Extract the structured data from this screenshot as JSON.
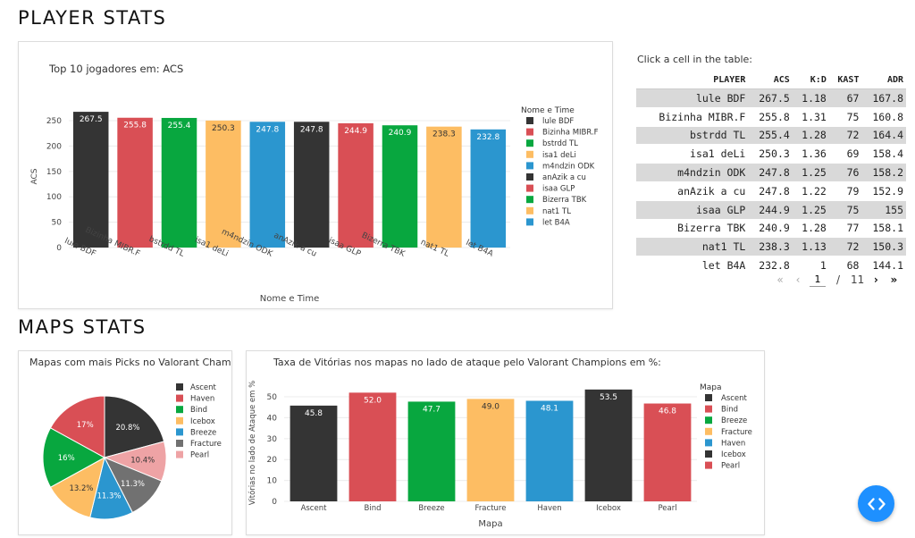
{
  "headings": {
    "player_stats": "PLAYER STATS",
    "maps_stats": "MAPS STATS"
  },
  "colors": [
    "#343434",
    "#d94f55",
    "#08a73f",
    "#fdbd63",
    "#2b96cf",
    "#343434",
    "#d94f55",
    "#08a73f",
    "#fdbd63",
    "#2b96cf"
  ],
  "table": {
    "caption": "Click a cell in the table:",
    "columns": [
      "PLAYER",
      "ACS",
      "K:D",
      "KAST",
      "ADR"
    ],
    "rows": [
      [
        "lule BDF",
        "267.5",
        "1.18",
        "67",
        "167.8"
      ],
      [
        "Bizinha MIBR.F",
        "255.8",
        "1.31",
        "75",
        "160.8"
      ],
      [
        "bstrdd TL",
        "255.4",
        "1.28",
        "72",
        "164.4"
      ],
      [
        "isa1 deLi",
        "250.3",
        "1.36",
        "69",
        "158.4"
      ],
      [
        "m4ndzin ODK",
        "247.8",
        "1.25",
        "76",
        "158.2"
      ],
      [
        "anAzik a cu",
        "247.8",
        "1.22",
        "79",
        "152.9"
      ],
      [
        "isaa GLP",
        "244.9",
        "1.25",
        "75",
        "155"
      ],
      [
        "Bizerra TBK",
        "240.9",
        "1.28",
        "77",
        "158.1"
      ],
      [
        "nat1 TL",
        "238.3",
        "1.13",
        "72",
        "150.3"
      ],
      [
        "let B4A",
        "232.8",
        "1",
        "68",
        "144.1"
      ]
    ],
    "pager": {
      "current": "1",
      "separator": "/",
      "total": "11",
      "first": "«",
      "prev": "‹",
      "next": "›",
      "last": "»"
    }
  },
  "fab": {
    "icon": "code-icon",
    "color": "#1e90ff"
  },
  "chart_data": [
    {
      "type": "bar",
      "title": "Top 10 jogadores em: ACS",
      "xlabel": "Nome e Time",
      "ylabel": "ACS",
      "ylim": [
        0,
        280
      ],
      "yticks": [
        0,
        50,
        100,
        150,
        200,
        250
      ],
      "legend_title": "Nome e Time",
      "legend_position": "right",
      "categories": [
        "lule  BDF",
        "Bizinha  MIBR.F",
        "bstrdd  TL",
        "isa1  deLi",
        "m4ndzin  ODK",
        "anAzik  a cu",
        "isaa  GLP",
        "Bizerra  TBK",
        "nat1  TL",
        "let  B4A"
      ],
      "values": [
        267.5,
        255.8,
        255.4,
        250.3,
        247.8,
        247.8,
        244.9,
        240.9,
        238.3,
        232.8
      ],
      "labels": [
        "267.5",
        "255.8",
        "255.4",
        "250.3",
        "247.8",
        "247.8",
        "244.9",
        "240.9",
        "238.3",
        "232.8"
      ],
      "colors": [
        "#343434",
        "#d94f55",
        "#08a73f",
        "#fdbd63",
        "#2b96cf",
        "#343434",
        "#d94f55",
        "#08a73f",
        "#fdbd63",
        "#2b96cf"
      ]
    },
    {
      "type": "pie",
      "title": "Mapas com mais Picks no Valorant Champions",
      "legend_position": "right",
      "categories": [
        "Ascent",
        "Haven",
        "Bind",
        "Icebox",
        "Breeze",
        "Fracture",
        "Pearl"
      ],
      "values": [
        20.8,
        17,
        16,
        13.2,
        11.3,
        11.3,
        10.4
      ],
      "labels": [
        "20.8%",
        "17%",
        "16%",
        "13.2%",
        "11.3%",
        "11.3%",
        "10.4%"
      ],
      "slice_order": [
        "Ascent",
        "Pearl",
        "Fracture",
        "Breeze",
        "Icebox",
        "Bind",
        "Haven"
      ],
      "colors": [
        "#343434",
        "#d94f55",
        "#08a73f",
        "#fdbd63",
        "#2b96cf",
        "#717171",
        "#eea3a5"
      ]
    },
    {
      "type": "bar",
      "title": "Taxa de Vitórias nos mapas no lado de ataque pelo Valorant Champions em %:",
      "xlabel": "Mapa",
      "ylabel": "Vitórias no lado de Ataque em %",
      "ylim": [
        0,
        56
      ],
      "yticks": [
        0,
        10,
        20,
        30,
        40,
        50
      ],
      "legend_title": "Mapa",
      "legend_position": "right",
      "categories": [
        "Ascent",
        "Bind",
        "Breeze",
        "Fracture",
        "Haven",
        "Icebox",
        "Pearl"
      ],
      "values": [
        45.8,
        52.0,
        47.7,
        49.0,
        48.1,
        53.5,
        46.8
      ],
      "labels": [
        "45.8",
        "52.0",
        "47.7",
        "49.0",
        "48.1",
        "53.5",
        "46.8"
      ],
      "colors": [
        "#343434",
        "#d94f55",
        "#08a73f",
        "#fdbd63",
        "#2b96cf",
        "#343434",
        "#d94f55"
      ]
    }
  ]
}
